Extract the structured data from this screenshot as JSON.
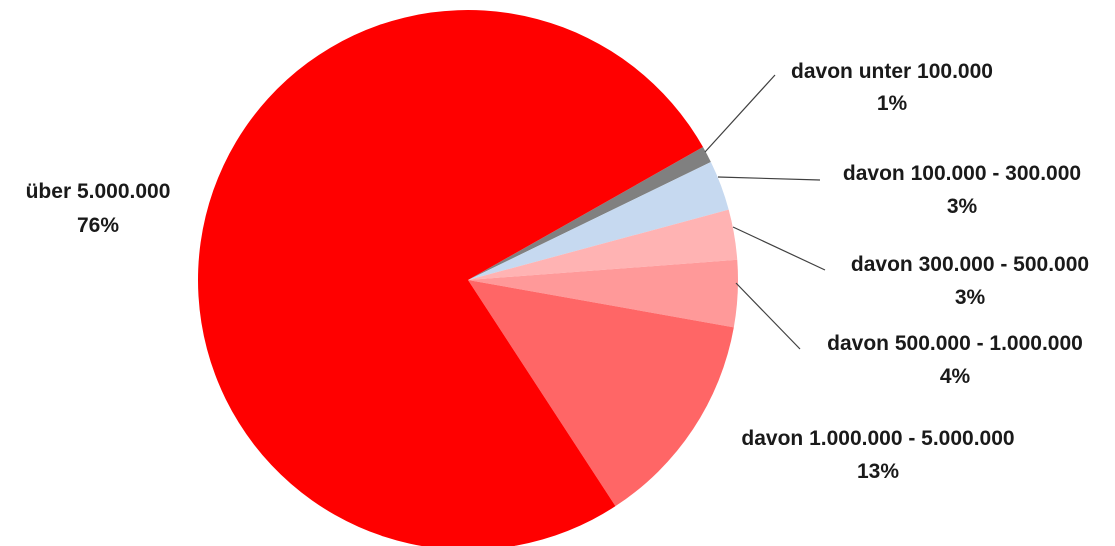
{
  "chart_data": {
    "type": "pie",
    "title": "",
    "slices": [
      {
        "label": "davon unter 100.000",
        "percent_label": "1%",
        "value": 1,
        "color": "#808080"
      },
      {
        "label": "davon 100.000 - 300.000",
        "percent_label": "3%",
        "value": 3,
        "color": "#C6D9F0"
      },
      {
        "label": "davon 300.000 - 500.000",
        "percent_label": "3%",
        "value": 3,
        "color": "#FFB3B3"
      },
      {
        "label": "davon 500.000 - 1.000.000",
        "percent_label": "4%",
        "value": 4,
        "color": "#FF9999"
      },
      {
        "label": "davon 1.000.000 - 5.000.000",
        "percent_label": "13%",
        "value": 13,
        "color": "#FF6666"
      },
      {
        "label": "über 5.000.000",
        "percent_label": "76%",
        "value": 76,
        "color": "#FF0000"
      }
    ],
    "legend": "none"
  }
}
